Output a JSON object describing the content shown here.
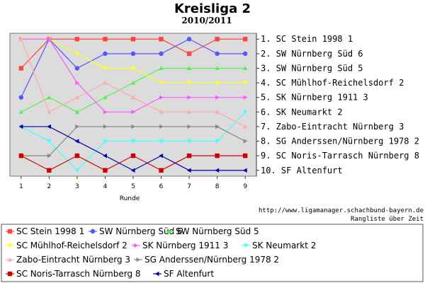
{
  "chart_data": {
    "type": "line",
    "title": "Kreisliga 2",
    "subtitle": "2010/2011",
    "xlabel": "Runde",
    "x": [
      1,
      2,
      3,
      4,
      5,
      6,
      7,
      8,
      9
    ],
    "xlim": [
      0.6,
      9.4
    ],
    "ylim": [
      0.6,
      10.4
    ],
    "y_inverted": true,
    "grid": false,
    "legend_position": "bottom",
    "right_axis_labels": [
      "1. SC Stein 1998 1",
      "2. SW Nürnberg Süd 6",
      "3. SW Nürnberg Süd 5",
      "4. SC Mühlhof-Reichelsdorf 2",
      "5. SK Nürnberg 1911 3",
      "6. SK Neumarkt 2",
      "7. Zabo-Eintracht Nürnberg 3",
      "8. SG Anderssen/Nürnberg 1978 2",
      "9. SC Noris-Tarrasch Nürnberg 8",
      "10. SF Altenfurt"
    ],
    "source_url": "http://www.ligamanager.schachbund-bayern.de",
    "caption": "Rangliste über Zeit",
    "series": [
      {
        "name": "SC Stein 1998 1",
        "color": "#ff4444",
        "marker": "square",
        "values": [
          3,
          1,
          1,
          1,
          1,
          1,
          2,
          1,
          1
        ]
      },
      {
        "name": "SW Nürnberg Süd 6",
        "color": "#5555ff",
        "marker": "circle",
        "values": [
          5,
          1,
          3,
          2,
          2,
          2,
          1,
          2,
          2
        ]
      },
      {
        "name": "SW Nürnberg Süd 5",
        "color": "#55ee55",
        "marker": "triangle-up",
        "values": [
          6,
          5,
          6,
          5,
          4,
          3,
          3,
          3,
          3
        ]
      },
      {
        "name": "SC Mühlhof-Reichelsdorf 2",
        "color": "#ffff22",
        "marker": "triangle-down",
        "values": [
          1,
          1,
          2,
          3,
          3,
          4,
          4,
          4,
          4
        ]
      },
      {
        "name": "SK Nürnberg 1911 3",
        "color": "#ff55ff",
        "marker": "triangle-right",
        "values": [
          1,
          1,
          4,
          6,
          6,
          5,
          5,
          5,
          5
        ]
      },
      {
        "name": "SK Neumarkt 2",
        "color": "#44ffff",
        "marker": "triangle-down",
        "values": [
          7,
          8,
          10,
          8,
          8,
          8,
          8,
          8,
          6
        ]
      },
      {
        "name": "Zabo-Eintracht Nürnberg 3",
        "color": "#ffaaaa",
        "marker": "triangle-up",
        "values": [
          1,
          6,
          5,
          4,
          5,
          6,
          6,
          6,
          7
        ]
      },
      {
        "name": "SG Anderssen/Nürnberg 1978 2",
        "color": "#888888",
        "marker": "triangle-right",
        "values": [
          9,
          9,
          7,
          7,
          7,
          7,
          7,
          7,
          8
        ]
      },
      {
        "name": "SC Noris-Tarrasch Nürnberg 8",
        "color": "#cc0000",
        "marker": "square",
        "values": [
          9,
          10,
          9,
          10,
          9,
          10,
          9,
          9,
          9
        ]
      },
      {
        "name": "SF Altenfurt",
        "color": "#0000aa",
        "marker": "triangle-left",
        "values": [
          7,
          7,
          8,
          9,
          10,
          9,
          10,
          10,
          10
        ]
      }
    ]
  }
}
